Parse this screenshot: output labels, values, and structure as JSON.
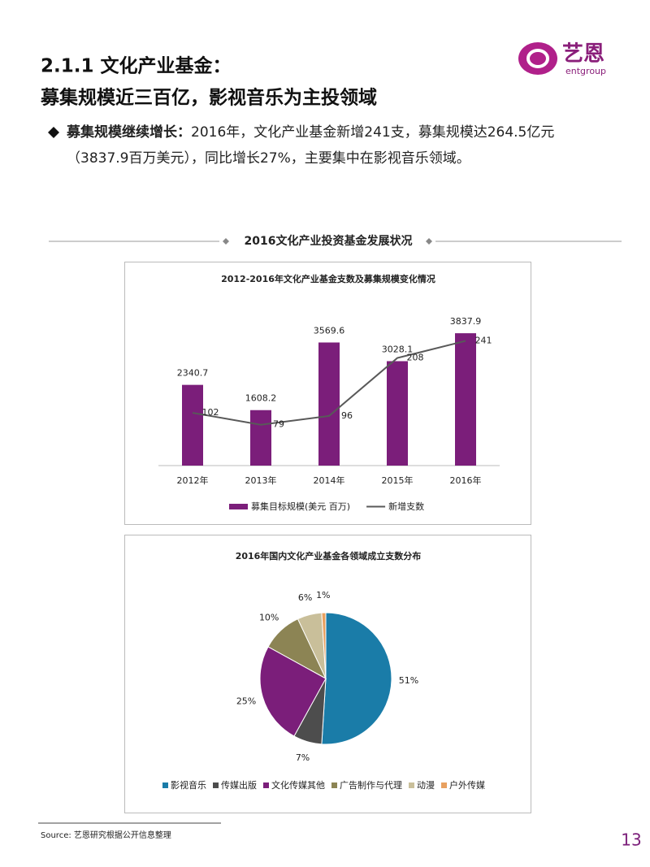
{
  "header": {
    "title_line1": "2.1.1 文化产业基金：",
    "title_line2": "募集规模近三百亿，影视音乐为主投领域"
  },
  "logo": {
    "name": "艺恩",
    "sub": "entgroup"
  },
  "bullet": {
    "lead": "募集规模继续增长：",
    "text_line1": "2016年，文化产业基金新增241支，募集规模达264.5亿元",
    "text_line2": "（3837.9百万美元），同比增长27%，主要集中在影视音乐领域。"
  },
  "section_title": "2016文化产业投资基金发展状况",
  "chart_data": [
    {
      "type": "combo",
      "title": "2012-2016年文化产业基金支数及募集规模变化情况",
      "categories": [
        "2012年",
        "2013年",
        "2014年",
        "2015年",
        "2016年"
      ],
      "ylim": [
        0,
        4500
      ],
      "y2lim": [
        0,
        300
      ],
      "series": [
        {
          "name": "募集目标规模(美元 百万)",
          "type": "bar",
          "color": "#7b1e7a",
          "values": [
            2340.7,
            1608.2,
            3569.6,
            3028.1,
            3837.9
          ]
        },
        {
          "name": "新增支数",
          "type": "line",
          "axis": "y2",
          "color": "#595959",
          "values": [
            102,
            79,
            96,
            208,
            241
          ]
        }
      ]
    },
    {
      "type": "pie",
      "title": "2016年国内文化产业基金各领域成立支数分布",
      "categories": [
        "影视音乐",
        "传媒出版",
        "文化传媒其他",
        "广告制作与代理",
        "动漫",
        "户外传媒"
      ],
      "values": [
        51,
        7,
        25,
        10,
        6,
        1
      ],
      "value_labels": [
        "51%",
        "7%",
        "25%",
        "10%",
        "6%",
        "1%"
      ],
      "colors": [
        "#1a7ca8",
        "#4d4d4d",
        "#7b1e7a",
        "#8c8454",
        "#c9bf9a",
        "#e8a060"
      ]
    }
  ],
  "source": "Source: 艺恩研究根据公开信息整理",
  "page_number": "13"
}
